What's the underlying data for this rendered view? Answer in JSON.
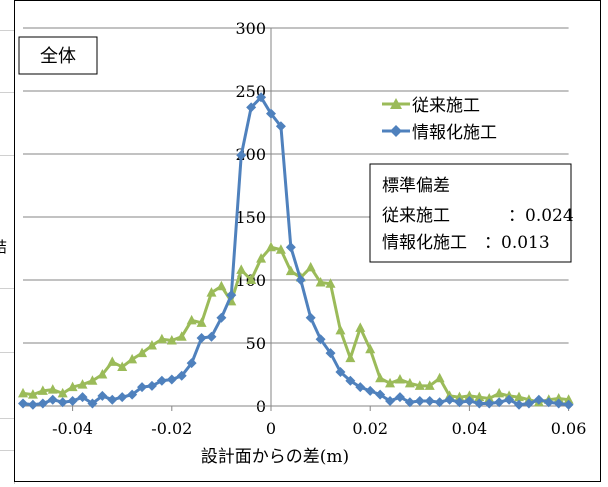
{
  "sheet": {
    "left_edge_char": "結"
  },
  "chart_data": {
    "type": "line",
    "title": "全体",
    "xlabel": "設計面からの差(m)",
    "ylabel": "",
    "xlim": [
      -0.05,
      0.06
    ],
    "ylim": [
      0,
      300
    ],
    "xticks": [
      -0.04,
      -0.02,
      0,
      0.02,
      0.04,
      0.06
    ],
    "xtick_labels": [
      "-0.04",
      "-0.02",
      "0",
      "0.02",
      "0.04",
      "0.06"
    ],
    "yticks": [
      0,
      50,
      100,
      150,
      200,
      250,
      300
    ],
    "ytick_labels": [
      "0",
      "50",
      "100",
      "150",
      "200",
      "250",
      "300"
    ],
    "grid": "horizontal",
    "legend_position": "upper-right",
    "x": [
      -0.05,
      -0.048,
      -0.046,
      -0.044,
      -0.042,
      -0.04,
      -0.038,
      -0.036,
      -0.034,
      -0.032,
      -0.03,
      -0.028,
      -0.026,
      -0.024,
      -0.022,
      -0.02,
      -0.018,
      -0.016,
      -0.014,
      -0.012,
      -0.01,
      -0.008,
      -0.006,
      -0.004,
      -0.002,
      0,
      0.002,
      0.004,
      0.006,
      0.008,
      0.01,
      0.012,
      0.014,
      0.016,
      0.018,
      0.02,
      0.022,
      0.024,
      0.026,
      0.028,
      0.03,
      0.032,
      0.034,
      0.036,
      0.038,
      0.04,
      0.042,
      0.044,
      0.046,
      0.048,
      0.05,
      0.052,
      0.054,
      0.056,
      0.058,
      0.06
    ],
    "series": [
      {
        "name": "従来施工",
        "color": "#9bbb59",
        "marker": "triangle",
        "values": [
          10,
          9,
          12,
          13,
          10,
          15,
          17,
          20,
          25,
          35,
          31,
          37,
          42,
          48,
          53,
          52,
          55,
          68,
          66,
          90,
          95,
          83,
          108,
          100,
          117,
          126,
          124,
          107,
          102,
          110,
          98,
          97,
          60,
          38,
          62,
          45,
          22,
          18,
          21,
          18,
          16,
          16,
          22,
          8,
          7,
          8,
          7,
          6,
          10,
          8,
          7,
          5,
          3,
          5,
          6,
          5
        ]
      },
      {
        "name": "情報化施工",
        "color": "#4f81bd",
        "marker": "diamond",
        "values": [
          2,
          1,
          2,
          5,
          3,
          4,
          7,
          2,
          8,
          5,
          7,
          9,
          15,
          16,
          20,
          21,
          24,
          34,
          54,
          55,
          70,
          88,
          199,
          237,
          245,
          232,
          222,
          126,
          100,
          70,
          53,
          42,
          27,
          20,
          15,
          12,
          9,
          4,
          7,
          3,
          4,
          4,
          3,
          5,
          3,
          4,
          2,
          2,
          3,
          5,
          1,
          2,
          5,
          3,
          2,
          1
        ]
      }
    ],
    "annotation": {
      "heading": "標準偏差",
      "lines": [
        {
          "label": "従来施工",
          "value": "：0.024"
        },
        {
          "label": "情報化施工",
          "value": "：0.013"
        }
      ]
    }
  }
}
